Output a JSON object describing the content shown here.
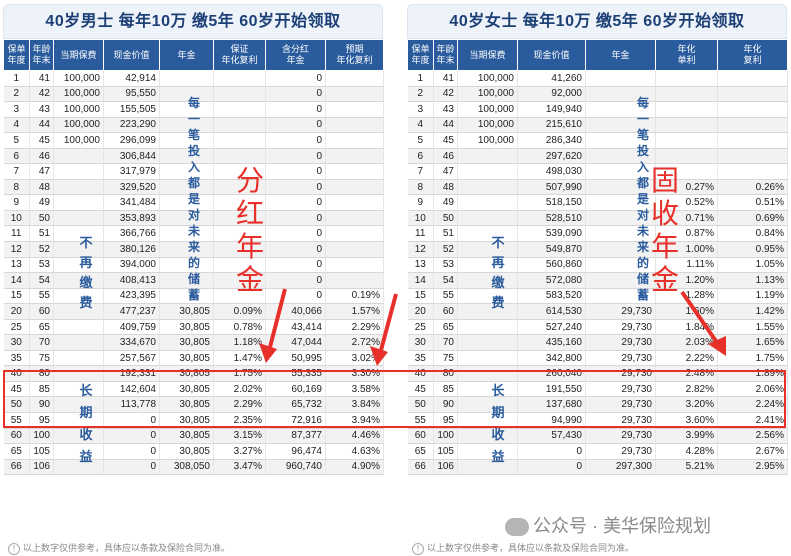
{
  "left": {
    "title": "40岁男士   每年10万  缴5年   60岁开始领取",
    "headers": [
      "保单\n年度",
      "年龄\n年末",
      "当期保费",
      "现金价值",
      "年金",
      "保证\n年化复利",
      "含分红\n年金",
      "预期\n年化复利"
    ],
    "rows": [
      [
        "1",
        "41",
        "100,000",
        "42,914",
        "",
        "",
        "0",
        ""
      ],
      [
        "2",
        "42",
        "100,000",
        "95,550",
        "",
        "",
        "0",
        ""
      ],
      [
        "3",
        "43",
        "100,000",
        "155,505",
        "",
        "",
        "0",
        ""
      ],
      [
        "4",
        "44",
        "100,000",
        "223,290",
        "",
        "",
        "0",
        ""
      ],
      [
        "5",
        "45",
        "100,000",
        "296,099",
        "",
        "",
        "0",
        ""
      ],
      [
        "6",
        "46",
        "",
        "306,844",
        "",
        "",
        "0",
        ""
      ],
      [
        "7",
        "47",
        "",
        "317,979",
        "",
        "",
        "0",
        ""
      ],
      [
        "8",
        "48",
        "",
        "329,520",
        "",
        "",
        "0",
        ""
      ],
      [
        "9",
        "49",
        "",
        "341,484",
        "",
        "",
        "0",
        ""
      ],
      [
        "10",
        "50",
        "",
        "353,893",
        "",
        "",
        "0",
        ""
      ],
      [
        "11",
        "51",
        "",
        "366,766",
        "",
        "",
        "0",
        ""
      ],
      [
        "12",
        "52",
        "",
        "380,126",
        "",
        "",
        "0",
        ""
      ],
      [
        "13",
        "53",
        "",
        "394,000",
        "",
        "",
        "0",
        ""
      ],
      [
        "14",
        "54",
        "",
        "408,413",
        "",
        "",
        "0",
        ""
      ],
      [
        "15",
        "55",
        "",
        "423,395",
        "",
        "",
        "0",
        "0.19%"
      ],
      [
        "20",
        "60",
        "",
        "477,237",
        "30,805",
        "0.09%",
        "40,066",
        "1.57%"
      ],
      [
        "25",
        "65",
        "",
        "409,759",
        "30,805",
        "0.78%",
        "43,414",
        "2.29%"
      ],
      [
        "30",
        "70",
        "",
        "334,670",
        "30,805",
        "1.18%",
        "47,044",
        "2.72%"
      ],
      [
        "35",
        "75",
        "",
        "257,567",
        "30,805",
        "1.47%",
        "50,995",
        "3.02%"
      ],
      [
        "40",
        "80",
        "",
        "192,331",
        "30,805",
        "1.75%",
        "55,335",
        "3.30%"
      ],
      [
        "45",
        "85",
        "",
        "142,604",
        "30,805",
        "2.02%",
        "60,169",
        "3.58%"
      ],
      [
        "50",
        "90",
        "",
        "113,778",
        "30,805",
        "2.29%",
        "65,732",
        "3.84%"
      ],
      [
        "55",
        "95",
        "",
        "0",
        "30,805",
        "2.35%",
        "72,916",
        "3.94%"
      ],
      [
        "60",
        "100",
        "",
        "0",
        "30,805",
        "3.15%",
        "87,377",
        "4.46%"
      ],
      [
        "65",
        "105",
        "",
        "0",
        "30,805",
        "3.27%",
        "96,474",
        "4.63%"
      ],
      [
        "66",
        "106",
        "",
        "0",
        "308,050",
        "3.47%",
        "960,740",
        "4.90%"
      ]
    ],
    "label_invest": "每一笔投入都是对未来的储蓄",
    "label_nopay": "不再缴费",
    "label_longterm": "长期收益",
    "big_label": "分红年金"
  },
  "right": {
    "title": "40岁女士   每年10万  缴5年   60岁开始领取",
    "headers": [
      "保单\n年度",
      "年龄\n年末",
      "当期保费",
      "现金价值",
      "年金",
      "年化\n单利",
      "年化\n复利"
    ],
    "rows": [
      [
        "1",
        "41",
        "100,000",
        "41,260",
        "",
        "",
        ""
      ],
      [
        "2",
        "42",
        "100,000",
        "92,000",
        "",
        "",
        ""
      ],
      [
        "3",
        "43",
        "100,000",
        "149,940",
        "",
        "",
        ""
      ],
      [
        "4",
        "44",
        "100,000",
        "215,610",
        "",
        "",
        ""
      ],
      [
        "5",
        "45",
        "100,000",
        "286,340",
        "",
        "",
        ""
      ],
      [
        "6",
        "46",
        "",
        "297,620",
        "",
        "",
        ""
      ],
      [
        "7",
        "47",
        "",
        "498,030",
        "",
        "",
        ""
      ],
      [
        "8",
        "48",
        "",
        "507,990",
        "",
        "0.27%",
        "0.26%"
      ],
      [
        "9",
        "49",
        "",
        "518,150",
        "",
        "0.52%",
        "0.51%"
      ],
      [
        "10",
        "50",
        "",
        "528,510",
        "",
        "0.71%",
        "0.69%"
      ],
      [
        "11",
        "51",
        "",
        "539,090",
        "",
        "0.87%",
        "0.84%"
      ],
      [
        "12",
        "52",
        "",
        "549,870",
        "",
        "1.00%",
        "0.95%"
      ],
      [
        "13",
        "53",
        "",
        "560,860",
        "",
        "1.11%",
        "1.05%"
      ],
      [
        "14",
        "54",
        "",
        "572,080",
        "",
        "1.20%",
        "1.13%"
      ],
      [
        "15",
        "55",
        "",
        "583,520",
        "",
        "1.28%",
        "1.19%"
      ],
      [
        "20",
        "60",
        "",
        "614,530",
        "29,730",
        "1.60%",
        "1.42%"
      ],
      [
        "25",
        "65",
        "",
        "527,240",
        "29,730",
        "1.84%",
        "1.55%"
      ],
      [
        "30",
        "70",
        "",
        "435,160",
        "29,730",
        "2.03%",
        "1.65%"
      ],
      [
        "35",
        "75",
        "",
        "342,800",
        "29,730",
        "2.22%",
        "1.75%"
      ],
      [
        "40",
        "80",
        "",
        "260,040",
        "29,730",
        "2.48%",
        "1.89%"
      ],
      [
        "45",
        "85",
        "",
        "191,550",
        "29,730",
        "2.82%",
        "2.06%"
      ],
      [
        "50",
        "90",
        "",
        "137,680",
        "29,730",
        "3.20%",
        "2.24%"
      ],
      [
        "55",
        "95",
        "",
        "94,990",
        "29,730",
        "3.60%",
        "2.41%"
      ],
      [
        "60",
        "100",
        "",
        "57,430",
        "29,730",
        "3.99%",
        "2.56%"
      ],
      [
        "65",
        "105",
        "",
        "0",
        "29,730",
        "4.28%",
        "2.67%"
      ],
      [
        "66",
        "106",
        "",
        "0",
        "297,300",
        "5.21%",
        "2.95%"
      ]
    ],
    "label_invest": "每一笔投入都是对未来的储蓄",
    "label_nopay": "不再缴费",
    "label_longterm": "长期收益",
    "big_label": "固收年金"
  },
  "footnote": "以上数字仅供参考，具体应以条款及保险合同为准。",
  "watermark": "公众号 · 美华保险规划",
  "colors": {
    "header": "#2a5b9c",
    "accent_red": "#e8302b",
    "title_text": "#1c3f75"
  }
}
